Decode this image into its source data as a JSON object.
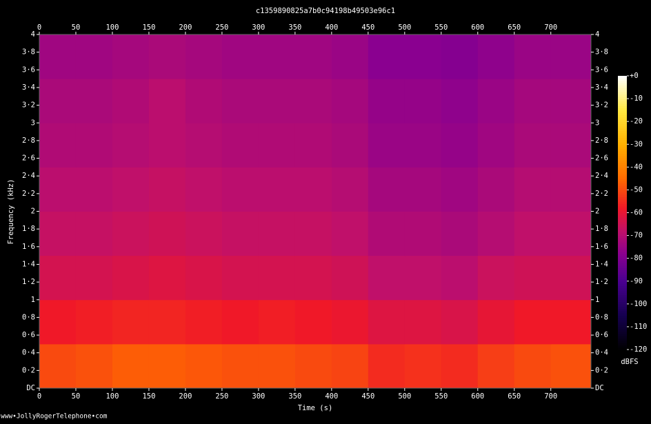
{
  "chart_data": {
    "type": "heatmap",
    "title": "c1359890825a7b0c94198b49503e96c1",
    "x_label": "Time (s)",
    "y_label": "Frequency (kHz)",
    "colorbar_label": "dBFS",
    "footer": "www•JollyRogerTelephone•com",
    "xlim": [
      0,
      755
    ],
    "xticks": [
      0,
      50,
      100,
      150,
      200,
      250,
      300,
      350,
      400,
      450,
      500,
      550,
      600,
      650,
      700
    ],
    "ylim": [
      0,
      4
    ],
    "yticks": [
      {
        "value": 0,
        "label": "DC"
      },
      {
        "value": 0.2,
        "label": "0·2"
      },
      {
        "value": 0.4,
        "label": "0·4"
      },
      {
        "value": 0.6,
        "label": "0·6"
      },
      {
        "value": 0.8,
        "label": "0·8"
      },
      1,
      {
        "value": 1.2,
        "label": "1·2"
      },
      {
        "value": 1.4,
        "label": "1·4"
      },
      {
        "value": 1.6,
        "label": "1·6"
      },
      {
        "value": 1.8,
        "label": "1·8"
      },
      2,
      {
        "value": 2.2,
        "label": "2·2"
      },
      {
        "value": 2.4,
        "label": "2·4"
      },
      {
        "value": 2.6,
        "label": "2·6"
      },
      {
        "value": 2.8,
        "label": "2·8"
      },
      3,
      {
        "value": 3.2,
        "label": "3·2"
      },
      {
        "value": 3.4,
        "label": "3·4"
      },
      {
        "value": 3.6,
        "label": "3·6"
      },
      {
        "value": 3.8,
        "label": "3·8"
      },
      4
    ],
    "zlim": [
      -120,
      0
    ],
    "zticks": [
      {
        "value": 0,
        "label": "+0"
      },
      -10,
      -20,
      -30,
      -40,
      -50,
      -60,
      -70,
      -80,
      -90,
      -100,
      -110,
      -120
    ],
    "colorscale": [
      [
        -120,
        "#000000"
      ],
      [
        -105,
        "#150050"
      ],
      [
        -90,
        "#4a0090"
      ],
      [
        -78,
        "#8a0090"
      ],
      [
        -68,
        "#c0106a"
      ],
      [
        -58,
        "#f01828"
      ],
      [
        -45,
        "#ff6a00"
      ],
      [
        -30,
        "#ffb000"
      ],
      [
        -15,
        "#ffe840"
      ],
      [
        0,
        "#ffffff"
      ]
    ],
    "xbins": [
      0,
      50,
      100,
      150,
      200,
      250,
      300,
      350,
      400,
      450,
      500,
      550,
      600,
      650,
      700,
      755
    ],
    "ybins": [
      0,
      0.5,
      1,
      1.5,
      2,
      2.5,
      3,
      3.5,
      4
    ],
    "z": [
      [
        -50,
        -49,
        -47,
        -47,
        -48,
        -49,
        -49,
        -50,
        -51,
        -55,
        -54,
        -55,
        -52,
        -50,
        -49
      ],
      [
        -58,
        -57,
        -56,
        -56,
        -57,
        -58,
        -57,
        -58,
        -59,
        -62,
        -62,
        -63,
        -60,
        -58,
        -58
      ],
      [
        -64,
        -64,
        -63,
        -62,
        -63,
        -64,
        -64,
        -64,
        -65,
        -68,
        -68,
        -69,
        -66,
        -65,
        -65
      ],
      [
        -67,
        -67,
        -66,
        -65,
        -66,
        -67,
        -67,
        -67,
        -68,
        -71,
        -71,
        -72,
        -70,
        -68,
        -68
      ],
      [
        -69,
        -69,
        -68,
        -67,
        -68,
        -69,
        -69,
        -69,
        -70,
        -73,
        -73,
        -74,
        -72,
        -70,
        -70
      ],
      [
        -71,
        -71,
        -70,
        -69,
        -70,
        -71,
        -71,
        -71,
        -72,
        -75,
        -75,
        -76,
        -74,
        -72,
        -72
      ],
      [
        -72,
        -72,
        -71,
        -69,
        -71,
        -72,
        -72,
        -72,
        -73,
        -76,
        -76,
        -77,
        -75,
        -73,
        -73
      ],
      [
        -74,
        -74,
        -73,
        -72,
        -73,
        -74,
        -74,
        -74,
        -75,
        -78,
        -78,
        -79,
        -77,
        -75,
        -75
      ]
    ]
  }
}
